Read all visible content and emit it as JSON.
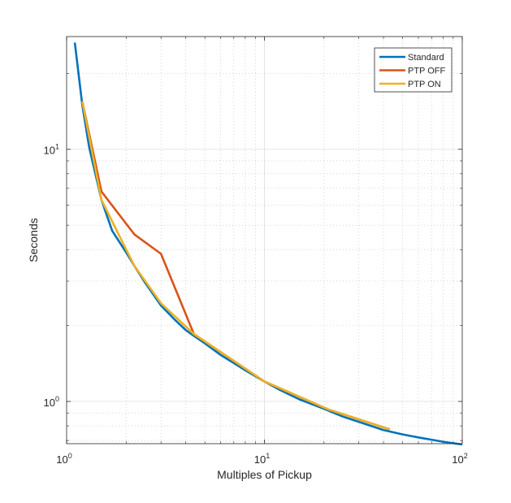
{
  "chart_data": {
    "type": "line",
    "title": "",
    "xlabel": "Multiples of Pickup",
    "ylabel": "Seconds",
    "xscale": "log",
    "yscale": "log",
    "xlim": [
      1,
      100
    ],
    "ylim": [
      0.68,
      28
    ],
    "grid": true,
    "minor_grid": true,
    "legend_position": "top-right",
    "x_ticks": [
      {
        "value": 1,
        "base": "10",
        "exp": "0"
      },
      {
        "value": 10,
        "base": "10",
        "exp": "1"
      },
      {
        "value": 100,
        "base": "10",
        "exp": "2"
      }
    ],
    "y_ticks": [
      {
        "value": 1,
        "base": "10",
        "exp": "0"
      },
      {
        "value": 10,
        "base": "10",
        "exp": "1"
      }
    ],
    "series": [
      {
        "name": "Standard",
        "color": "#0072BD",
        "x": [
          1.1,
          1.2,
          1.3,
          1.5,
          1.7,
          2.0,
          2.2,
          2.5,
          3.0,
          3.5,
          4.0,
          4.4,
          5.0,
          6.0,
          7.0,
          8.0,
          10.0,
          12.0,
          15.0,
          20.0,
          25.0,
          30.0,
          40.0,
          43.0,
          50.0,
          60.0,
          70.0,
          80.0,
          100.0
        ],
        "y": [
          26.5,
          15.0,
          10.2,
          6.3,
          4.75,
          3.9,
          3.45,
          2.95,
          2.4,
          2.12,
          1.92,
          1.82,
          1.7,
          1.53,
          1.42,
          1.33,
          1.2,
          1.11,
          1.02,
          0.935,
          0.87,
          0.83,
          0.77,
          0.76,
          0.74,
          0.72,
          0.705,
          0.692,
          0.675
        ]
      },
      {
        "name": "PTP OFF",
        "color": "#D95319",
        "x": [
          1.2,
          1.5,
          2.2,
          3.0,
          4.4,
          10.0,
          21.0,
          43.0
        ],
        "y": [
          15.5,
          6.8,
          4.6,
          3.85,
          1.85,
          1.2,
          0.93,
          0.775
        ]
      },
      {
        "name": "PTP ON",
        "color": "#EDB120",
        "x": [
          1.2,
          1.5,
          2.2,
          3.0,
          4.4,
          10.0,
          21.0,
          43.0
        ],
        "y": [
          15.5,
          6.3,
          3.45,
          2.45,
          1.85,
          1.2,
          0.93,
          0.775
        ]
      }
    ]
  }
}
